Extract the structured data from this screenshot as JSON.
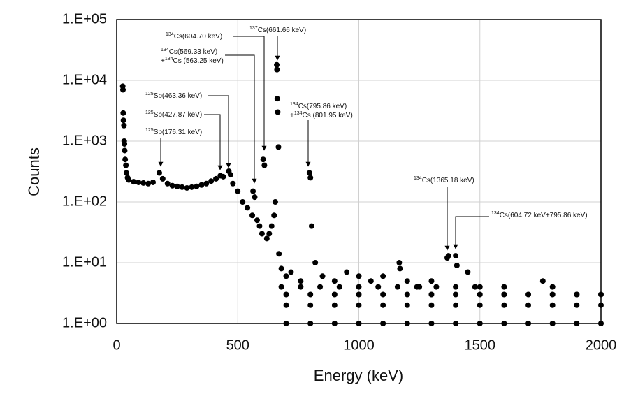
{
  "chart_data": {
    "type": "scatter",
    "xlabel": "Energy (keV)",
    "ylabel": "Counts",
    "color": "#000000",
    "grid": true,
    "log_y": true,
    "xlim": [
      0,
      2000
    ],
    "xticks": [
      0,
      500,
      1000,
      1500,
      2000
    ],
    "ylim": [
      1,
      100000
    ],
    "yticks": [
      {
        "value": 1,
        "label": "1.E+00"
      },
      {
        "value": 10,
        "label": "1.E+01"
      },
      {
        "value": 100,
        "label": "1.E+02"
      },
      {
        "value": 1000,
        "label": "1.E+03"
      },
      {
        "value": 10000,
        "label": "1.E+04"
      },
      {
        "value": 100000,
        "label": "1.E+05"
      }
    ],
    "x": [
      25,
      26,
      27,
      28,
      30,
      31,
      32,
      33,
      35,
      38,
      40,
      45,
      50,
      70,
      90,
      110,
      130,
      150,
      176,
      190,
      210,
      230,
      250,
      270,
      290,
      310,
      330,
      350,
      370,
      390,
      410,
      428,
      440,
      463,
      470,
      480,
      500,
      520,
      540,
      560,
      563,
      570,
      580,
      590,
      600,
      605,
      610,
      620,
      630,
      640,
      650,
      655,
      661,
      662,
      663,
      665,
      668,
      670,
      680,
      700,
      720,
      760,
      796,
      800,
      805,
      820,
      850,
      900,
      950,
      1000,
      1050,
      1100,
      1167,
      1170,
      1200,
      1250,
      1300,
      1365,
      1370,
      1400,
      1405,
      1450,
      1500,
      1600,
      1760,
      1800,
      1900,
      2000,
      680,
      760,
      840,
      920,
      1000,
      1080,
      1160,
      1240,
      1320,
      1400,
      1480,
      700,
      800,
      900,
      1000,
      1100,
      1200,
      1300,
      1400,
      1500,
      1600,
      1700,
      1800,
      1900,
      700,
      800,
      900,
      1000,
      1100,
      1200,
      1300,
      1400,
      1500,
      1600,
      1700,
      1800,
      1900,
      2000,
      700,
      800,
      900,
      1000,
      1100,
      1200,
      1300,
      1400,
      1500,
      1600,
      1700,
      1800,
      1900,
      2000
    ],
    "values": [
      8000,
      7000,
      2900,
      2200,
      1800,
      1000,
      900,
      700,
      500,
      400,
      300,
      250,
      230,
      215,
      210,
      205,
      200,
      210,
      300,
      240,
      200,
      185,
      180,
      175,
      170,
      175,
      180,
      190,
      200,
      220,
      240,
      270,
      260,
      320,
      280,
      200,
      150,
      100,
      80,
      60,
      150,
      120,
      50,
      40,
      30,
      500,
      400,
      25,
      30,
      40,
      60,
      100,
      18000,
      15000,
      5000,
      3000,
      800,
      14,
      8,
      6,
      7,
      5,
      300,
      250,
      40,
      10,
      6,
      5,
      7,
      6,
      5,
      6,
      10,
      8,
      5,
      4,
      5,
      12,
      13,
      13,
      9,
      7,
      4,
      4,
      5,
      4,
      3,
      3,
      4,
      4,
      4,
      4,
      4,
      4,
      4,
      4,
      4,
      4,
      4,
      3,
      3,
      3,
      3,
      3,
      3,
      3,
      3,
      3,
      3,
      3,
      3,
      3,
      2,
      2,
      2,
      2,
      2,
      2,
      2,
      2,
      2,
      2,
      2,
      2,
      2,
      2,
      1,
      1,
      1,
      1,
      1,
      1,
      1,
      1,
      1,
      1,
      1,
      1,
      1,
      1
    ],
    "annotations": [
      {
        "lines": [
          {
            "sup": "134",
            "text": "Cs(604.70 keV)"
          }
        ]
      },
      {
        "lines": [
          {
            "sup": "137",
            "text": "Cs(661.66 keV)"
          }
        ]
      },
      {
        "lines": [
          {
            "sup": "134",
            "text": "Cs(569.33 keV)"
          },
          {
            "prefix": "+",
            "sup": "134",
            "text": "Cs (563.25 keV)"
          }
        ]
      },
      {
        "lines": [
          {
            "sup": "125",
            "text": "Sb(463.36 keV)"
          }
        ]
      },
      {
        "lines": [
          {
            "sup": "125",
            "text": "Sb(427.87 keV)"
          }
        ]
      },
      {
        "lines": [
          {
            "sup": "125",
            "text": "Sb(176.31 keV)"
          }
        ]
      },
      {
        "lines": [
          {
            "sup": "134",
            "text": "Cs(795.86 keV)"
          },
          {
            "prefix": "+",
            "sup": "134",
            "text": "Cs (801.95 keV)"
          }
        ]
      },
      {
        "lines": [
          {
            "sup": "134",
            "text": "Cs(1365.18 keV)"
          }
        ]
      },
      {
        "lines": [
          {
            "sup": "134",
            "text": "Cs(604.72 keV+795.86 keV)"
          }
        ]
      }
    ]
  }
}
